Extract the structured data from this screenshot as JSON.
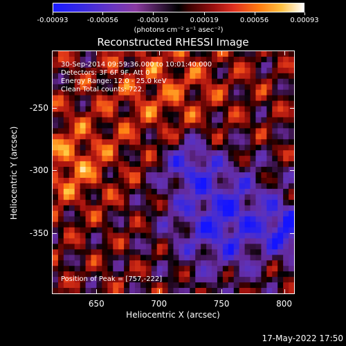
{
  "colorbar": {
    "labels": [
      "-0.00093",
      "-0.00056",
      "-0.00019",
      "0.00019",
      "0.00056",
      "0.00093"
    ],
    "units": "(photons cm⁻² s⁻¹ asec⁻²)"
  },
  "title": "Reconstructed RHESSI Image",
  "annotations": {
    "time_range": "30-Sep-2014 09:59:36.000 to 10:01:40.000",
    "detectors": "Detectors: 3F 6F 9F, Att 0",
    "energy_range": "Energy Range: 12.0 - 25.0 keV",
    "method": "Clean     Total counts: 722.",
    "peak": "Position of Peak = [757,-222]"
  },
  "chart_data": {
    "type": "heatmap",
    "xlabel": "Heliocentric X (arcsec)",
    "ylabel": "Heliocentric Y (arcsec)",
    "xlim": [
      615,
      808
    ],
    "ylim": [
      -398,
      -205
    ],
    "x_ticks": [
      "650",
      "700",
      "750",
      "800"
    ],
    "y_ticks": [
      "-250",
      "-300",
      "-350"
    ],
    "colormap": "blue-black-red-yellow-white",
    "value_range": [
      -0.00093,
      0.00093
    ],
    "peak_position": [
      757,
      -222
    ]
  },
  "timestamp": "17-May-2022 17:50"
}
